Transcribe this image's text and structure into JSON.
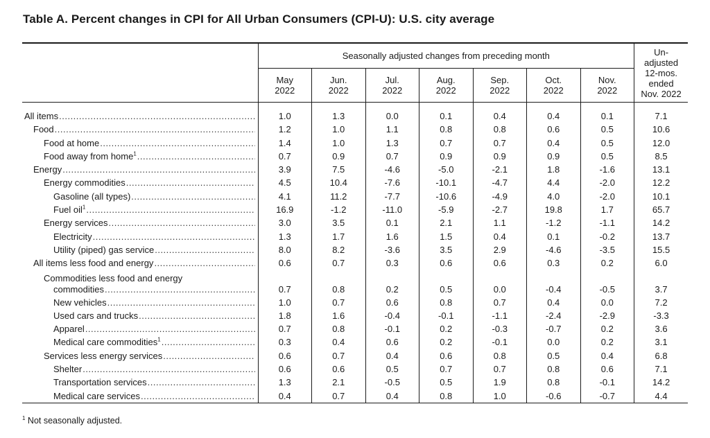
{
  "title": "Table A. Percent changes in CPI for All Urban Consumers (CPI-U): U.S. city average",
  "header": {
    "group_label": "Seasonally adjusted changes from preceding month",
    "months": [
      {
        "month": "May",
        "year": "2022"
      },
      {
        "month": "Jun.",
        "year": "2022"
      },
      {
        "month": "Jul.",
        "year": "2022"
      },
      {
        "month": "Aug.",
        "year": "2022"
      },
      {
        "month": "Sep.",
        "year": "2022"
      },
      {
        "month": "Oct.",
        "year": "2022"
      },
      {
        "month": "Nov.",
        "year": "2022"
      }
    ],
    "annual_lines": [
      "Un-",
      "adjusted",
      "12-mos.",
      "ended",
      "Nov. 2022"
    ]
  },
  "rows": [
    {
      "label": "All items",
      "indent": 0,
      "sup": "",
      "values": [
        "1.0",
        "1.3",
        "0.0",
        "0.1",
        "0.4",
        "0.4",
        "0.1",
        "7.1"
      ]
    },
    {
      "label": "Food",
      "indent": 1,
      "sup": "",
      "values": [
        "1.2",
        "1.0",
        "1.1",
        "0.8",
        "0.8",
        "0.6",
        "0.5",
        "10.6"
      ]
    },
    {
      "label": "Food at home",
      "indent": 2,
      "sup": "",
      "values": [
        "1.4",
        "1.0",
        "1.3",
        "0.7",
        "0.7",
        "0.4",
        "0.5",
        "12.0"
      ]
    },
    {
      "label": "Food away from home",
      "indent": 2,
      "sup": "1",
      "values": [
        "0.7",
        "0.9",
        "0.7",
        "0.9",
        "0.9",
        "0.9",
        "0.5",
        "8.5"
      ]
    },
    {
      "label": "Energy",
      "indent": 1,
      "sup": "",
      "values": [
        "3.9",
        "7.5",
        "-4.6",
        "-5.0",
        "-2.1",
        "1.8",
        "-1.6",
        "13.1"
      ]
    },
    {
      "label": "Energy commodities",
      "indent": 2,
      "sup": "",
      "values": [
        "4.5",
        "10.4",
        "-7.6",
        "-10.1",
        "-4.7",
        "4.4",
        "-2.0",
        "12.2"
      ]
    },
    {
      "label": "Gasoline (all types)",
      "indent": 3,
      "sup": "",
      "values": [
        "4.1",
        "11.2",
        "-7.7",
        "-10.6",
        "-4.9",
        "4.0",
        "-2.0",
        "10.1"
      ]
    },
    {
      "label": "Fuel oil",
      "indent": 3,
      "sup": "1",
      "values": [
        "16.9",
        "-1.2",
        "-11.0",
        "-5.9",
        "-2.7",
        "19.8",
        "1.7",
        "65.7"
      ]
    },
    {
      "label": "Energy services",
      "indent": 2,
      "sup": "",
      "values": [
        "3.0",
        "3.5",
        "0.1",
        "2.1",
        "1.1",
        "-1.2",
        "-1.1",
        "14.2"
      ]
    },
    {
      "label": "Electricity",
      "indent": 3,
      "sup": "",
      "values": [
        "1.3",
        "1.7",
        "1.6",
        "1.5",
        "0.4",
        "0.1",
        "-0.2",
        "13.7"
      ]
    },
    {
      "label": "Utility (piped) gas service",
      "indent": 3,
      "sup": "",
      "values": [
        "8.0",
        "8.2",
        "-3.6",
        "3.5",
        "2.9",
        "-4.6",
        "-3.5",
        "15.5"
      ]
    },
    {
      "label": "All items less food and energy",
      "indent": 1,
      "sup": "",
      "values": [
        "0.6",
        "0.7",
        "0.3",
        "0.6",
        "0.6",
        "0.3",
        "0.2",
        "6.0"
      ]
    },
    {
      "label": "Commodities less food and energy",
      "label2": "commodities",
      "indent": 2,
      "sup": "",
      "values": [
        "0.7",
        "0.8",
        "0.2",
        "0.5",
        "0.0",
        "-0.4",
        "-0.5",
        "3.7"
      ]
    },
    {
      "label": "New vehicles",
      "indent": 3,
      "sup": "",
      "values": [
        "1.0",
        "0.7",
        "0.6",
        "0.8",
        "0.7",
        "0.4",
        "0.0",
        "7.2"
      ]
    },
    {
      "label": "Used cars and trucks",
      "indent": 3,
      "sup": "",
      "values": [
        "1.8",
        "1.6",
        "-0.4",
        "-0.1",
        "-1.1",
        "-2.4",
        "-2.9",
        "-3.3"
      ]
    },
    {
      "label": "Apparel",
      "indent": 3,
      "sup": "",
      "values": [
        "0.7",
        "0.8",
        "-0.1",
        "0.2",
        "-0.3",
        "-0.7",
        "0.2",
        "3.6"
      ]
    },
    {
      "label": "Medical care commodities",
      "indent": 3,
      "sup": "1",
      "values": [
        "0.3",
        "0.4",
        "0.6",
        "0.2",
        "-0.1",
        "0.0",
        "0.2",
        "3.1"
      ]
    },
    {
      "label": "Services less energy services",
      "indent": 2,
      "sup": "",
      "values": [
        "0.6",
        "0.7",
        "0.4",
        "0.6",
        "0.8",
        "0.5",
        "0.4",
        "6.8"
      ]
    },
    {
      "label": "Shelter",
      "indent": 3,
      "sup": "",
      "values": [
        "0.6",
        "0.6",
        "0.5",
        "0.7",
        "0.7",
        "0.8",
        "0.6",
        "7.1"
      ]
    },
    {
      "label": "Transportation services",
      "indent": 3,
      "sup": "",
      "values": [
        "1.3",
        "2.1",
        "-0.5",
        "0.5",
        "1.9",
        "0.8",
        "-0.1",
        "14.2"
      ]
    },
    {
      "label": "Medical care services",
      "indent": 3,
      "sup": "",
      "values": [
        "0.4",
        "0.7",
        "0.4",
        "0.8",
        "1.0",
        "-0.6",
        "-0.7",
        "4.4"
      ]
    }
  ],
  "footnote": {
    "marker": "1",
    "text": " Not seasonally adjusted."
  }
}
